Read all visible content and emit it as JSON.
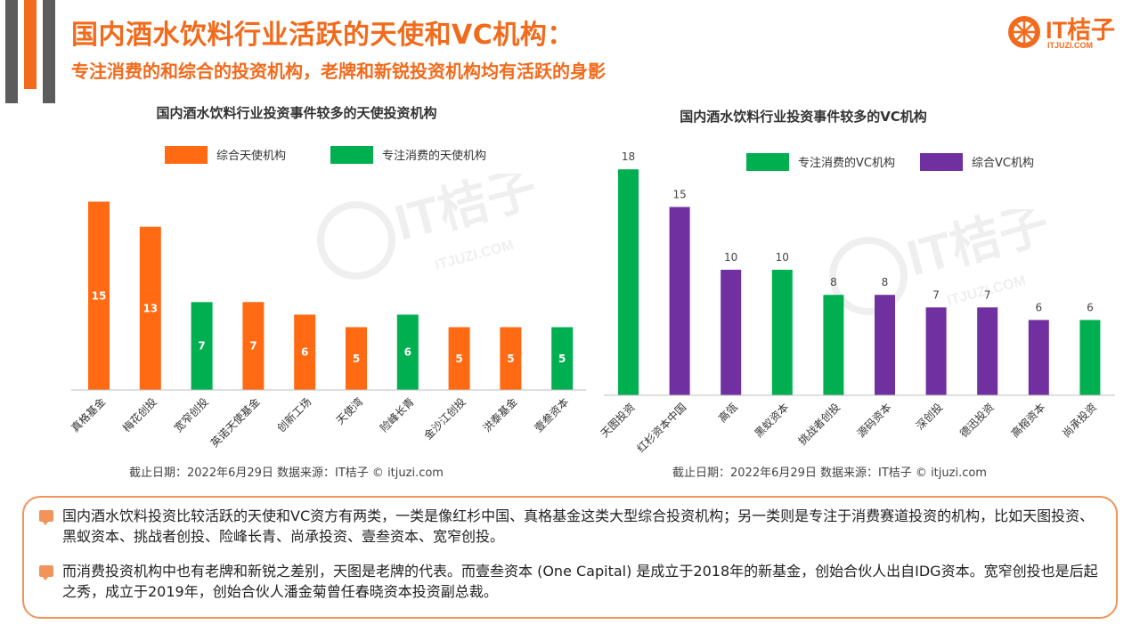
{
  "header": {
    "title": "国内酒水饮料行业活跃的天使和VC机构：",
    "subtitle": "专注消费的和综合的投资机构，老牌和新锐投资机构均有活跃的身影"
  },
  "logo": {
    "text": "IT桔子",
    "sub": "ITJUZI.COM",
    "color": "#f26a1b"
  },
  "watermark": {
    "text": "IT桔子",
    "sub": "ITJUZI.COM"
  },
  "colors": {
    "orange": "#ff6a13",
    "green": "#00b050",
    "purple": "#7030a0",
    "accent": "#f26a1b"
  },
  "chart_data": [
    {
      "type": "bar",
      "title": "国内酒水饮料行业投资事件较多的天使投资机构",
      "categories": [
        "真格基金",
        "梅花创投",
        "宽窄创投",
        "英诺天使基金",
        "创新工场",
        "天使湾",
        "险峰长青",
        "金沙江创投",
        "洪泰基金",
        "壹叁资本"
      ],
      "values": [
        15,
        13,
        7,
        7,
        6,
        5,
        6,
        5,
        5,
        5
      ],
      "value_labels": [
        "15",
        "13",
        "7",
        "7",
        "6",
        "5",
        "6",
        "5",
        "5",
        "5"
      ],
      "groups": [
        "综合天使机构",
        "综合天使机构",
        "专注消费的天使机构",
        "综合天使机构",
        "综合天使机构",
        "综合天使机构",
        "专注消费的天使机构",
        "综合天使机构",
        "综合天使机构",
        "专注消费的天使机构"
      ],
      "legend": [
        {
          "name": "综合天使机构",
          "color": "#ff6a13"
        },
        {
          "name": "专注消费的天使机构",
          "color": "#00b050"
        }
      ],
      "legend_position": "top-right",
      "label_position": "inside",
      "ylim": [
        0,
        16
      ],
      "grid": false,
      "note": "截止日期：2022年6月29日    数据来源：IT桔子 © itjuzi.com"
    },
    {
      "type": "bar",
      "title": "国内酒水饮料行业投资事件较多的VC机构",
      "categories": [
        "天图投资",
        "红杉资本中国",
        "高瓴",
        "黑蚁资本",
        "挑战者创投",
        "源码资本",
        "深创投",
        "德迅投资",
        "高榕资本",
        "尚承投资"
      ],
      "values": [
        18,
        15,
        10,
        10,
        8,
        8,
        7,
        7,
        6,
        6
      ],
      "value_labels": [
        "18",
        "15",
        "10",
        "10",
        "8",
        "8",
        "7",
        "7",
        "6",
        "6"
      ],
      "groups": [
        "专注消费的VC机构",
        "综合VC机构",
        "综合VC机构",
        "专注消费的VC机构",
        "专注消费的VC机构",
        "综合VC机构",
        "综合VC机构",
        "综合VC机构",
        "综合VC机构",
        "专注消费的VC机构"
      ],
      "legend": [
        {
          "name": "专注消费的VC机构",
          "color": "#00b050"
        },
        {
          "name": "综合VC机构",
          "color": "#7030a0"
        }
      ],
      "legend_position": "top-right",
      "label_position": "top",
      "ylim": [
        0,
        18
      ],
      "grid": false,
      "note": "截止日期：2022年6月29日    数据来源：IT桔子 © itjuzi.com"
    }
  ],
  "summary": {
    "paragraphs": [
      "国内酒水饮料投资比较活跃的天使和VC资方有两类，一类是像红杉中国、真格基金这类大型综合投资机构；另一类则是专注于消费赛道投资的机构，比如天图投资、黑蚁资本、挑战者创投、险峰长青、尚承投资、壹叁资本、宽窄创投。",
      "而消费投资机构中也有老牌和新锐之差别，天图是老牌的代表。而壹叁资本 (One Capital) 是成立于2018年的新基金，创始合伙人出自IDG资本。宽窄创投也是后起之秀，成立于2019年，创始合伙人潘金菊曾任春晓资本投资副总裁。"
    ]
  }
}
